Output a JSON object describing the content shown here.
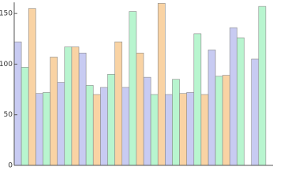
{
  "chart_data": {
    "type": "bar",
    "categories": [
      null,
      null,
      null,
      null,
      null,
      null,
      null,
      null,
      null,
      null,
      null,
      null
    ],
    "series": [
      {
        "color": "#c8cbf2",
        "values": [
          122,
          71,
          82,
          111,
          77,
          77,
          87,
          70,
          72,
          114,
          136,
          105
        ]
      },
      {
        "color": "#b8f5cf",
        "values": [
          97,
          72,
          117,
          79,
          90,
          152,
          70,
          85,
          130,
          88,
          126,
          157
        ]
      },
      {
        "color": "#f9d3a4",
        "values": [
          155,
          107,
          117,
          70,
          122,
          111,
          160,
          71,
          70,
          89,
          null,
          null
        ]
      }
    ],
    "ylim": [
      0,
      161
    ],
    "yticks": [
      0,
      50,
      100,
      150
    ]
  }
}
